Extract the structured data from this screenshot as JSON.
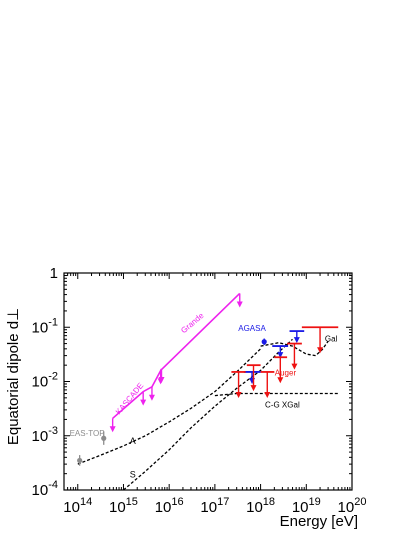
{
  "chart_data": {
    "type": "scatter",
    "xscale": "log",
    "yscale": "log",
    "xlim": [
      50000000000000.0,
      1e+20
    ],
    "ylim": [
      0.0001,
      1
    ],
    "xlabel": "Energy [eV]",
    "ylabel": "Equatorial dipole d⊥",
    "x_ticks": [
      {
        "value": 100000000000000.0,
        "base": "10",
        "exp": "14"
      },
      {
        "value": 1000000000000000.0,
        "base": "10",
        "exp": "15"
      },
      {
        "value": 1e+16,
        "base": "10",
        "exp": "16"
      },
      {
        "value": 1e+17,
        "base": "10",
        "exp": "17"
      },
      {
        "value": 1e+18,
        "base": "10",
        "exp": "18"
      },
      {
        "value": 1e+19,
        "base": "10",
        "exp": "19"
      },
      {
        "value": 1e+20,
        "base": "10",
        "exp": "20"
      }
    ],
    "y_ticks": [
      {
        "value": 0.0001,
        "base": "10",
        "exp": "-4"
      },
      {
        "value": 0.001,
        "base": "10",
        "exp": "-3"
      },
      {
        "value": 0.01,
        "base": "10",
        "exp": "-2"
      },
      {
        "value": 0.1,
        "base": "10",
        "exp": "-1"
      },
      {
        "value": 1,
        "base": "1",
        "exp": ""
      }
    ],
    "colors": {
      "KASCADE": "#ee22ee",
      "Grande": "#ee22ee",
      "EAS-TOP": "#8c8c8c",
      "AGASA": "#1a1ae6",
      "Auger": "#ee1111",
      "models": "#000000"
    },
    "series": [
      {
        "name": "EAS-TOP",
        "kind": "points",
        "points": [
          {
            "x": 110000000000000.0,
            "y": 0.00035,
            "ylo": 0.00028,
            "yhi": 0.00044
          },
          {
            "x": 370000000000000.0,
            "y": 0.0009,
            "ylo": 0.00068,
            "yhi": 0.0012
          }
        ]
      },
      {
        "name": "KASCADE",
        "kind": "limits",
        "limits": [
          {
            "x": 580000000000000.0,
            "y": 0.0021
          },
          {
            "x": 2700000000000000.0,
            "y": 0.0065
          },
          {
            "x": 4200000000000000.0,
            "y": 0.008
          },
          {
            "x": 6800000000000000.0,
            "y": 0.017
          }
        ]
      },
      {
        "name": "Grande",
        "kind": "limits",
        "limits": [
          {
            "x": 6500000000000000.0,
            "y": 0.016
          },
          {
            "x": 3.5e+17,
            "y": 0.42
          }
        ]
      },
      {
        "name": "AGASA",
        "kind": "points_and_limits",
        "points": [
          {
            "x": 1.2e+18,
            "y": 0.054,
            "ylo": 0.047,
            "yhi": 0.062
          }
        ],
        "limits": [
          {
            "x": 6.5e+17,
            "y": 0.015,
            "xlo": 4.3e+17,
            "xhi": 1e+18
          },
          {
            "x": 2.7e+18,
            "y": 0.045,
            "xlo": 1.8e+18,
            "xhi": 4e+18
          },
          {
            "x": 6.2e+18,
            "y": 0.085,
            "xlo": 4.3e+18,
            "xhi": 9e+18
          }
        ]
      },
      {
        "name": "Auger",
        "kind": "limits",
        "limits": [
          {
            "x": 3.3e+17,
            "y": 0.015,
            "xlo": 2.3e+17,
            "xhi": 4.7e+17
          },
          {
            "x": 7e+17,
            "y": 0.02,
            "xlo": 5e+17,
            "xhi": 1e+18
          },
          {
            "x": 1.4e+18,
            "y": 0.015,
            "xlo": 1e+18,
            "xhi": 2e+18
          },
          {
            "x": 2.7e+18,
            "y": 0.028,
            "xlo": 2e+18,
            "xhi": 3.8e+18
          },
          {
            "x": 5.5e+18,
            "y": 0.05,
            "xlo": 3.8e+18,
            "xhi": 8e+18
          },
          {
            "x": 2e+19,
            "y": 0.1,
            "xlo": 8e+18,
            "xhi": 5e+19
          }
        ]
      },
      {
        "name": "A",
        "kind": "curve",
        "style": "dashed",
        "points": [
          [
            100000000000000.0,
            0.0003
          ],
          [
            300000000000000.0,
            0.00043
          ],
          [
            1000000000000000.0,
            0.00065
          ],
          [
            3000000000000000.0,
            0.001
          ],
          [
            1e+16,
            0.0018
          ],
          [
            3e+16,
            0.0032
          ],
          [
            1e+17,
            0.0065
          ],
          [
            3e+17,
            0.015
          ],
          [
            1e+18,
            0.04
          ]
        ]
      },
      {
        "name": "S",
        "kind": "curve",
        "style": "dashed",
        "points": [
          [
            1000000000000000.0,
            0.0001
          ],
          [
            3000000000000000.0,
            0.00022
          ],
          [
            1e+16,
            0.00055
          ],
          [
            3e+16,
            0.0014
          ],
          [
            1e+17,
            0.0035
          ],
          [
            3e+17,
            0.0075
          ],
          [
            1e+18,
            0.016
          ],
          [
            2.5e+18,
            0.035
          ],
          [
            5e+18,
            0.06
          ]
        ]
      },
      {
        "name": "C-G XGal",
        "kind": "curve",
        "style": "dashed",
        "points": [
          [
            1e+17,
            0.0055
          ],
          [
            3e+17,
            0.006
          ],
          [
            1e+18,
            0.006
          ],
          [
            1e+19,
            0.006
          ],
          [
            5e+19,
            0.006
          ]
        ]
      },
      {
        "name": "Gal",
        "kind": "curve",
        "style": "dashed",
        "points": [
          [
            1e+18,
            0.045
          ],
          [
            2.5e+18,
            0.052
          ],
          [
            5e+18,
            0.045
          ],
          [
            1e+19,
            0.032
          ],
          [
            1.6e+19,
            0.03
          ],
          [
            2.2e+19,
            0.038
          ],
          [
            3e+19,
            0.055
          ]
        ]
      }
    ],
    "annotations": [
      {
        "text": "EAS-TOP",
        "x": 160000000000000.0,
        "y": 0.001,
        "color": "#8c8c8c",
        "rotate": 0
      },
      {
        "text": "KASCADE",
        "x": 1500000000000000.0,
        "y": 0.0045,
        "color": "#ee22ee",
        "rotate": -50
      },
      {
        "text": "Grande",
        "x": 3.5e+16,
        "y": 0.11,
        "color": "#ee22ee",
        "rotate": -40
      },
      {
        "text": "AGASA",
        "x": 6.5e+17,
        "y": 0.085,
        "color": "#1a1ae6",
        "rotate": 0
      },
      {
        "text": "Auger",
        "x": 3.5e+18,
        "y": 0.013,
        "color": "#ee1111",
        "rotate": 0
      },
      {
        "text": "Gal",
        "x": 3.5e+19,
        "y": 0.055,
        "color": "#000000",
        "rotate": 0
      },
      {
        "text": "C-G XGal",
        "x": 3e+18,
        "y": 0.0033,
        "color": "#000000",
        "rotate": 0
      },
      {
        "text": "A",
        "x": 1600000000000000.0,
        "y": 0.0007,
        "color": "#000000",
        "rotate": 0
      },
      {
        "text": "S",
        "x": 1600000000000000.0,
        "y": 0.00017,
        "color": "#000000",
        "rotate": 0
      }
    ]
  }
}
